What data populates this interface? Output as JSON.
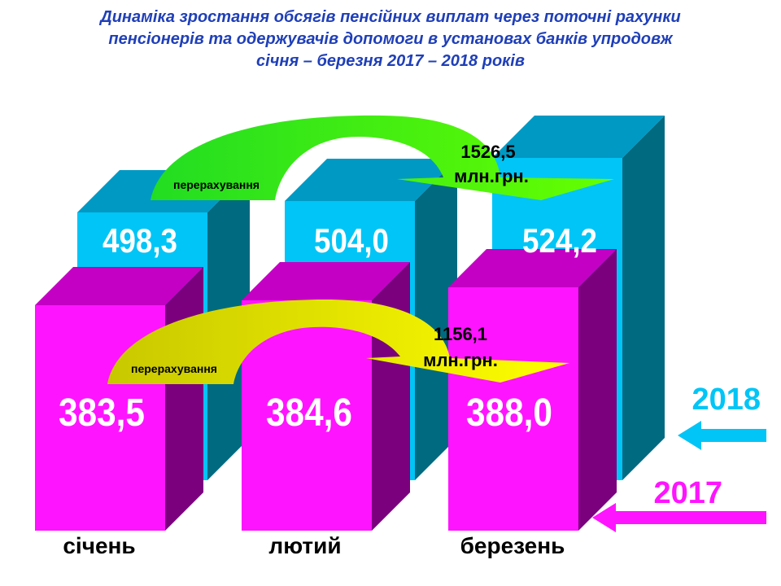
{
  "title_lines": [
    "Динаміка зростання обсягів пенсійних виплат через поточні рахунки",
    "пенсіонерів та одержувачів допомоги в установах банків упродовж",
    "січня – березня 2017 – 2018 років"
  ],
  "colors": {
    "s2018_front": "#00c5f6",
    "s2018_top": "#0099c4",
    "s2018_side": "#006a80",
    "s2017_front": "#ff14ff",
    "s2017_top": "#c400c4",
    "s2017_side": "#7a007e",
    "arrow2018": "#22dd22",
    "arrow2018_light": "#66ff00",
    "arrow2017": "#c8c800",
    "arrow2017_light": "#ffff00",
    "legend2018": "#00c5f6",
    "legend2017": "#ff14ff"
  },
  "chart_data": {
    "type": "bar",
    "categories": [
      "січень",
      "лютий",
      "березень"
    ],
    "series": [
      {
        "name": "2018",
        "values": [
          498.3,
          504.0,
          524.2
        ],
        "labels": [
          "498,3",
          "504,0",
          "524,2"
        ]
      },
      {
        "name": "2017",
        "values": [
          383.5,
          384.6,
          388.0
        ],
        "labels": [
          "383,5",
          "384,6",
          "388,0"
        ]
      }
    ],
    "annotations": {
      "arrow_label": "перерахування",
      "total_2018": [
        "1526,5",
        "млн.грн."
      ],
      "total_2017": [
        "1156,1",
        "млн.грн."
      ]
    },
    "legend": [
      "2018",
      "2017"
    ],
    "legend_position": "right"
  }
}
